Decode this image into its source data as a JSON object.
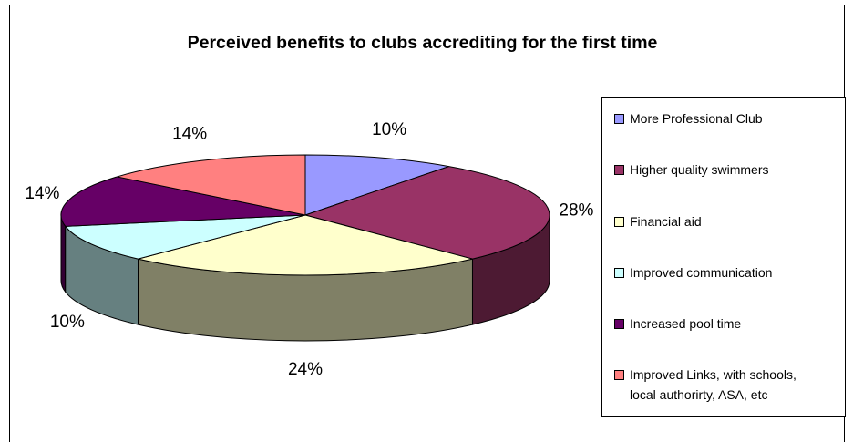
{
  "chart_data": {
    "type": "pie",
    "title": "Perceived benefits to clubs accrediting for the first time",
    "categories": [
      "More Professional Club",
      "Higher quality swimmers",
      "Financial aid",
      "Improved communication",
      "Increased pool time",
      "Improved Links, with schools, local authorirty, ASA, etc"
    ],
    "values": [
      10,
      28,
      24,
      10,
      14,
      14
    ],
    "value_labels": [
      "10%",
      "28%",
      "24%",
      "10%",
      "14%",
      "14%"
    ],
    "colors": [
      "#9999FF",
      "#993366",
      "#FFFFCC",
      "#CCFFFF",
      "#660066",
      "#FF8080"
    ],
    "style": "3d-pie",
    "legend_position": "right"
  },
  "legend": {
    "items": [
      {
        "label": "More Professional Club",
        "color": "#9999FF"
      },
      {
        "label": "Higher quality swimmers",
        "color": "#993366"
      },
      {
        "label": "Financial aid",
        "color": "#FFFFCC"
      },
      {
        "label": "Improved communication",
        "color": "#CCFFFF"
      },
      {
        "label": "Increased pool time",
        "color": "#660066"
      },
      {
        "label": "Improved Links, with schools,\nlocal authorirty, ASA, etc",
        "color": "#FF8080"
      }
    ]
  }
}
